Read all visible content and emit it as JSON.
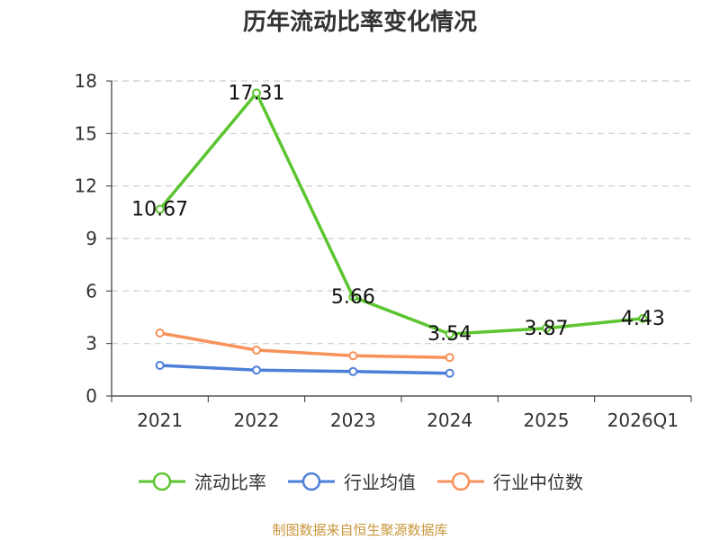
{
  "title": "历年流动比率变化情况",
  "source": "制图数据来自恒生聚源数据库",
  "chart_data": {
    "type": "line",
    "categories": [
      "2021",
      "2022",
      "2023",
      "2024",
      "2025",
      "2026Q1"
    ],
    "ylim": [
      0,
      18
    ],
    "yticks": [
      0,
      3,
      6,
      9,
      12,
      15,
      18
    ],
    "grid": true,
    "legend_position": "bottom",
    "series": [
      {
        "name": "流动比率",
        "color": "#5cc531",
        "values": [
          10.67,
          17.31,
          5.66,
          3.54,
          3.87,
          4.43
        ],
        "data_labels": [
          "10.67",
          "17.31",
          "5.66",
          "3.54",
          "3.87",
          "4.43"
        ]
      },
      {
        "name": "行业均值",
        "color": "#4d7fd9",
        "values": [
          1.75,
          1.48,
          1.4,
          1.3,
          null,
          null
        ]
      },
      {
        "name": "行业中位数",
        "color": "#f7925b",
        "values": [
          3.6,
          2.62,
          2.3,
          2.2,
          null,
          null
        ]
      }
    ]
  }
}
